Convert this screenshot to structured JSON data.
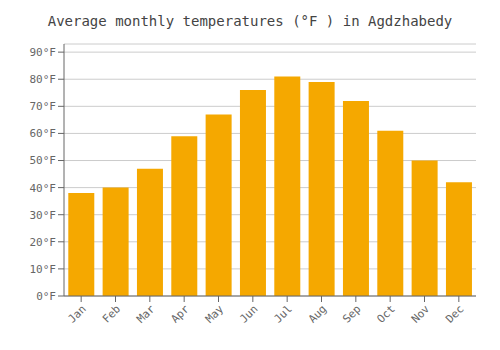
{
  "chart_data": {
    "type": "bar",
    "title": "Average monthly temperatures (°F ) in Agdzhabedy",
    "categories": [
      "Jan",
      "Feb",
      "Mar",
      "Apr",
      "May",
      "Jun",
      "Jul",
      "Aug",
      "Sep",
      "Oct",
      "Nov",
      "Dec"
    ],
    "values": [
      38,
      40,
      47,
      59,
      67,
      76,
      81,
      79,
      72,
      61,
      50,
      42
    ],
    "color": "#F5A800",
    "ylim": [
      0,
      93
    ],
    "yticks": [
      {
        "value": 0,
        "label": "0°F"
      },
      {
        "value": 10,
        "label": "10°F"
      },
      {
        "value": 20,
        "label": "20°F"
      },
      {
        "value": 30,
        "label": "30°F"
      },
      {
        "value": 40,
        "label": "40°F"
      },
      {
        "value": 50,
        "label": "50°F"
      },
      {
        "value": 60,
        "label": "60°F"
      },
      {
        "value": 70,
        "label": "70°F"
      },
      {
        "value": 80,
        "label": "80°F"
      },
      {
        "value": 90,
        "label": "90°F"
      }
    ],
    "grid": true
  }
}
